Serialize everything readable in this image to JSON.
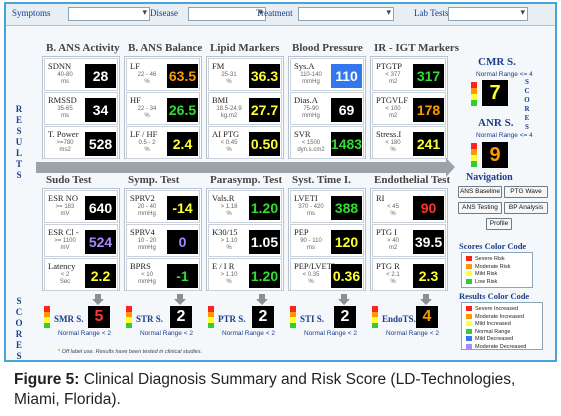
{
  "topbar": {
    "filters": [
      {
        "label": "Symptoms",
        "value": ""
      },
      {
        "label": "Disease",
        "value": ""
      },
      {
        "label": "Treatment",
        "value": ""
      },
      {
        "label": "Lab Tests",
        "value": ""
      }
    ]
  },
  "sidebar": {
    "results": "RESULTS",
    "scores": "SCORES"
  },
  "row1_sections": [
    {
      "title": "B. ANS Activity",
      "metrics": [
        {
          "name": "SDNN",
          "range": "40-80\nms",
          "value": "28",
          "color": "#ffffff"
        },
        {
          "name": "RMSSD",
          "range": "35-65\nms",
          "value": "34",
          "color": "#ffffff"
        },
        {
          "name": "T. Power",
          "range": ">=780\nms2",
          "value": "528",
          "color": "#ffffff"
        }
      ]
    },
    {
      "title": "B. ANS Balance",
      "metrics": [
        {
          "name": "LF",
          "range": "22 - 46\n%",
          "value": "63.5",
          "color": "#ff9900"
        },
        {
          "name": "HF",
          "range": "22 - 34\n%",
          "value": "26.5",
          "color": "#33dd33"
        },
        {
          "name": "LF / HF",
          "range": "0.5 - 2\n%",
          "value": "2.4",
          "color": "#ffff33"
        }
      ]
    },
    {
      "title": "Lipid Markers",
      "metrics": [
        {
          "name": "FM",
          "range": "25-31\n%",
          "value": "36.3",
          "color": "#ffff33"
        },
        {
          "name": "BMI",
          "range": "18.5-24.9\nkg.m2",
          "value": "27.7",
          "color": "#ffff33"
        },
        {
          "name": "AI PTG",
          "range": "< 0.45\n%",
          "value": "0.50",
          "color": "#ffff33"
        }
      ]
    },
    {
      "title": "Blood Pressure",
      "metrics": [
        {
          "name": "Sys.A",
          "range": "110-140\nmmHg",
          "value": "110",
          "color": "#ffffff",
          "bg": "#3377ee"
        },
        {
          "name": "Dias.A",
          "range": "75-90\nmmHg",
          "value": "69",
          "color": "#ffffff"
        },
        {
          "name": "SVR",
          "range": "< 1500\ndyn.s.cm2",
          "value": "1483",
          "color": "#33dd33"
        }
      ]
    },
    {
      "title": "IR - IGT Markers",
      "metrics": [
        {
          "name": "PTGTP",
          "range": "< 377\nm2",
          "value": "317",
          "color": "#33dd33"
        },
        {
          "name": "PTGVLF",
          "range": "< 100\nm2",
          "value": "178",
          "color": "#ff9900"
        },
        {
          "name": "Stress.I",
          "range": "< 180\n%",
          "value": "241",
          "color": "#ffff33"
        }
      ]
    }
  ],
  "row2_sections": [
    {
      "title": "Sudo Test",
      "metrics": [
        {
          "name": "ESR NO",
          "range": ">= 183\nmV",
          "value": "640",
          "color": "#ffffff"
        },
        {
          "name": "ESR Cl -",
          "range": ">= 1100\nmV",
          "value": "524",
          "color": "#aa88ff"
        },
        {
          "name": "Latency",
          "range": "< 2\nSec",
          "value": "2.2",
          "color": "#ffff33"
        }
      ]
    },
    {
      "title": "Symp. Test",
      "metrics": [
        {
          "name": "SPRV2",
          "range": "20 - 40\nmmHg",
          "value": "-14",
          "color": "#ffff33"
        },
        {
          "name": "SPRV4",
          "range": "10 - 20\nmmHg",
          "value": "0",
          "color": "#aa88ff"
        },
        {
          "name": "BPRS",
          "range": "< 10\nmmHg",
          "value": "-1",
          "color": "#33dd33"
        }
      ]
    },
    {
      "title": "Parasymp. Test",
      "metrics": [
        {
          "name": "Vals.R",
          "range": "> 1.18\n%",
          "value": "1.20",
          "color": "#33dd33"
        },
        {
          "name": "K30/15",
          "range": "> 1.10\n%",
          "value": "1.05",
          "color": "#ffffff"
        },
        {
          "name": "E / I R",
          "range": "> 1.10\n%",
          "value": "1.20",
          "color": "#33dd33"
        }
      ]
    },
    {
      "title": "Syst. Time I.",
      "metrics": [
        {
          "name": "LVETI",
          "range": "370 - 420\nms",
          "value": "388",
          "color": "#33dd33"
        },
        {
          "name": "PEP",
          "range": "90 - 110\nms",
          "value": "120",
          "color": "#ffff33"
        },
        {
          "name": "PEP/LVETI",
          "range": "< 0.35\n%",
          "value": "0.36",
          "color": "#ffff33"
        }
      ]
    },
    {
      "title": "Endothelial Test",
      "metrics": [
        {
          "name": "RI",
          "range": "< 45\n%",
          "value": "90",
          "color": "#ff3333"
        },
        {
          "name": "PTG I",
          "range": "> 40\nm2",
          "value": "39.5",
          "color": "#ffffff"
        },
        {
          "name": "PTG R",
          "range": "< 2.1\n%",
          "value": "2.3",
          "color": "#ffff33"
        }
      ]
    }
  ],
  "row2_scores": [
    {
      "label": "SMR S.",
      "value": "5",
      "color": "#ff3333",
      "normal": "Normal Range < 2"
    },
    {
      "label": "STR S.",
      "value": "2",
      "color": "#ffffff",
      "normal": "Normal Range < 2"
    },
    {
      "label": "PTR S.",
      "value": "2",
      "color": "#ffffff",
      "normal": "Normal Range < 2"
    },
    {
      "label": "STI S.",
      "value": "2",
      "color": "#ffffff",
      "normal": "Normal Range < 2"
    },
    {
      "label": "EndoTS.",
      "value": "4",
      "color": "#ff9900",
      "normal": "Normal Range < 2"
    }
  ],
  "cmr": {
    "label": "CMR S.",
    "normal": "Normal Range <= 4",
    "value": "7",
    "color": "#ffff33",
    "side": "SCORES"
  },
  "anr": {
    "label": "ANR S.",
    "normal": "Normal Range <= 4",
    "value": "9",
    "color": "#ff9900"
  },
  "navigation": {
    "title": "Navigation",
    "buttons": [
      "ANS Baseline",
      "PTG Wave",
      "ANS Testing",
      "BP Analysis",
      "Profile"
    ]
  },
  "scores_legend": {
    "title": "Scores Color Code",
    "items": [
      {
        "label": "Severe Risk",
        "color": "#ff2222"
      },
      {
        "label": "Moderate Risk",
        "color": "#ff9900"
      },
      {
        "label": "Mild Risk",
        "color": "#ffff33"
      },
      {
        "label": "Low Risk",
        "color": "#33cc33"
      }
    ]
  },
  "results_legend": {
    "title": "Results Color Code",
    "items": [
      {
        "label": "Severe Increased",
        "color": "#ff2222"
      },
      {
        "label": "Moderate Increased",
        "color": "#ff9900"
      },
      {
        "label": "Mild Increased",
        "color": "#ffff33"
      },
      {
        "label": "Normal Range",
        "color": "#33cc33"
      },
      {
        "label": "Mild Decreased",
        "color": "#3377ee"
      },
      {
        "label": "Moderate Decreased",
        "color": "#aa88ff"
      }
    ]
  },
  "footnote": {
    "marker": "*",
    "text": "Off label use. Results have been tested in clinical studies."
  },
  "caption": {
    "bold": "Figure 5:",
    "text": " Clinical Diagnosis Summary and Risk Score (LD-Technologies, Miami, Florida)."
  }
}
